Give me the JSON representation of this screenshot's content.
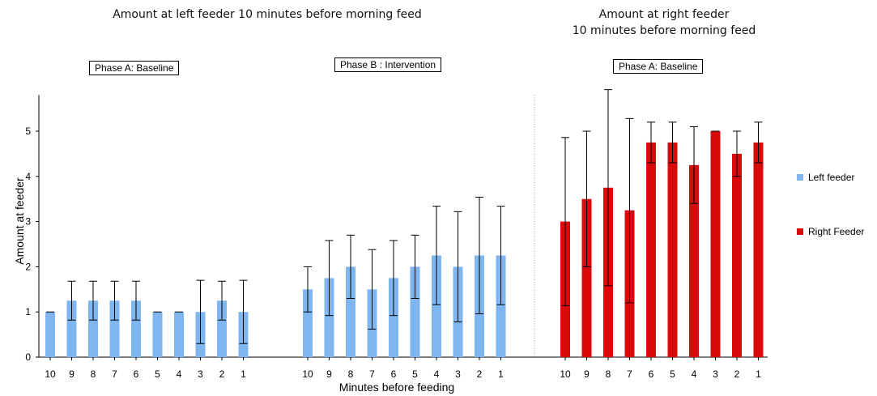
{
  "chart_data": {
    "type": "bar",
    "titles": {
      "left": "Amount at left feeder 10 minutes before morning feed",
      "right_line1": "Amount at right feeder",
      "right_line2": "10 minutes before morning feed"
    },
    "xlabel": "Minutes before feeding",
    "ylabel": "Amount at feeder",
    "ylim": [
      0,
      5.8
    ],
    "yticks": [
      0,
      1,
      2,
      3,
      4,
      5
    ],
    "categories": [
      "10",
      "9",
      "8",
      "7",
      "6",
      "5",
      "4",
      "3",
      "2",
      "1"
    ],
    "phases": [
      {
        "label": "Phase A: Baseline",
        "series": "Left feeder",
        "values": [
          1.0,
          1.25,
          1.25,
          1.25,
          1.25,
          1.0,
          1.0,
          1.0,
          1.25,
          1.0
        ],
        "err_low": [
          1.0,
          0.82,
          0.82,
          0.82,
          0.82,
          1.0,
          1.0,
          0.3,
          0.82,
          0.3
        ],
        "err_high": [
          1.0,
          1.68,
          1.68,
          1.68,
          1.68,
          1.0,
          1.0,
          1.7,
          1.68,
          1.7
        ]
      },
      {
        "label": "Phase B : Intervention",
        "series": "Left feeder",
        "values": [
          1.5,
          1.75,
          2.0,
          1.5,
          1.75,
          2.0,
          2.25,
          2.0,
          2.25,
          2.25
        ],
        "err_low": [
          1.0,
          0.92,
          1.3,
          0.62,
          0.92,
          1.3,
          1.16,
          0.78,
          0.96,
          1.16
        ],
        "err_high": [
          2.0,
          2.58,
          2.7,
          2.38,
          2.58,
          2.7,
          3.34,
          3.22,
          3.54,
          3.34
        ]
      },
      {
        "label": "Phase A: Baseline",
        "series": "Right Feeder",
        "values": [
          3.0,
          3.5,
          3.75,
          3.25,
          4.75,
          4.75,
          4.25,
          5.0,
          4.5,
          4.75
        ],
        "err_low": [
          1.14,
          2.0,
          1.58,
          1.2,
          4.3,
          4.3,
          3.4,
          5.0,
          4.0,
          4.3
        ],
        "err_high": [
          4.86,
          5.0,
          5.92,
          5.28,
          5.2,
          5.2,
          5.1,
          5.0,
          5.0,
          5.2
        ]
      }
    ],
    "legend": [
      {
        "name": "Left feeder",
        "color": "#7fb6f0"
      },
      {
        "name": "Right Feeder",
        "color": "#d90a0a"
      }
    ],
    "legend_position": "right",
    "grid": false
  }
}
